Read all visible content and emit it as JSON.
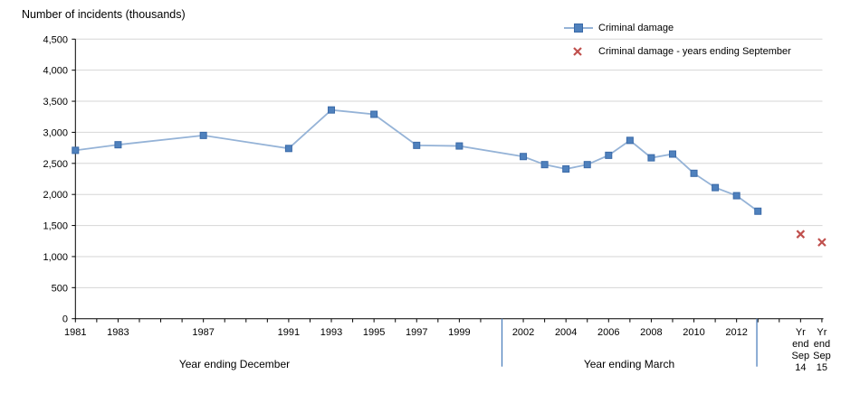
{
  "chart_data": {
    "type": "line",
    "title": "Number of incidents (thousands)",
    "ylim": [
      0,
      4500
    ],
    "grid": "horizontal",
    "legend_position": "top-right",
    "yticks": [
      {
        "v": 0,
        "label": "0"
      },
      {
        "v": 500,
        "label": "500"
      },
      {
        "v": 1000,
        "label": "1,000"
      },
      {
        "v": 1500,
        "label": "1,500"
      },
      {
        "v": 2000,
        "label": "2,000"
      },
      {
        "v": 2500,
        "label": "2,500"
      },
      {
        "v": 3000,
        "label": "3,000"
      },
      {
        "v": 3500,
        "label": "3,500"
      },
      {
        "v": 4000,
        "label": "4,000"
      },
      {
        "v": 4500,
        "label": "4,500"
      }
    ],
    "x_axis": {
      "tick_year_start": 1981,
      "tick_year_end": 2016,
      "tick_labels": [
        {
          "year": 1981,
          "label": "1981"
        },
        {
          "year": 1983,
          "label": "1983"
        },
        {
          "year": 1987,
          "label": "1987"
        },
        {
          "year": 1991,
          "label": "1991"
        },
        {
          "year": 1993,
          "label": "1993"
        },
        {
          "year": 1995,
          "label": "1995"
        },
        {
          "year": 1997,
          "label": "1997"
        },
        {
          "year": 1999,
          "label": "1999"
        },
        {
          "year": 2002,
          "label": "2002"
        },
        {
          "year": 2004,
          "label": "2004"
        },
        {
          "year": 2006,
          "label": "2006"
        },
        {
          "year": 2008,
          "label": "2008"
        },
        {
          "year": 2010,
          "label": "2010"
        },
        {
          "year": 2012,
          "label": "2012"
        }
      ],
      "special_labels": [
        {
          "year": 2015,
          "lines": [
            "Yr",
            "end",
            "Sep",
            "14"
          ]
        },
        {
          "year": 2016,
          "lines": [
            "Yr",
            "end",
            "Sep",
            "15"
          ]
        }
      ],
      "separator_years": [
        2001,
        2012.95
      ],
      "sections": [
        {
          "label": "Year ending December"
        },
        {
          "label": "Year ending March"
        }
      ]
    },
    "series": [
      {
        "name": "Criminal damage",
        "style": "line-with-square-markers",
        "points": [
          [
            1981,
            2710
          ],
          [
            1983,
            2800
          ],
          [
            1987,
            2950
          ],
          [
            1991,
            2740
          ],
          [
            1993,
            3360
          ],
          [
            1995,
            3290
          ],
          [
            1997,
            2790
          ],
          [
            1999,
            2780
          ],
          [
            2002,
            2610
          ],
          [
            2003,
            2480
          ],
          [
            2004,
            2410
          ],
          [
            2005,
            2480
          ],
          [
            2006,
            2630
          ],
          [
            2007,
            2870
          ],
          [
            2008,
            2590
          ],
          [
            2009,
            2650
          ],
          [
            2010,
            2340
          ],
          [
            2011,
            2110
          ],
          [
            2012,
            1980
          ],
          [
            2013,
            1730
          ]
        ]
      },
      {
        "name": "Criminal damage - years ending September",
        "style": "x-markers",
        "points": [
          [
            2015,
            1360
          ],
          [
            2016,
            1230
          ]
        ]
      }
    ],
    "legend": [
      {
        "label": "Criminal damage"
      },
      {
        "label": "Criminal damage - years ending September"
      }
    ],
    "colors": {
      "line": "#95B3D7",
      "marker": "#4F81BD",
      "marker_edge": "#3A6AA8",
      "x_marker": "#C0504D",
      "gridline": "#D6D6D6",
      "separator": "#4F81BD",
      "axis": "#000000",
      "text": "#000000"
    }
  }
}
